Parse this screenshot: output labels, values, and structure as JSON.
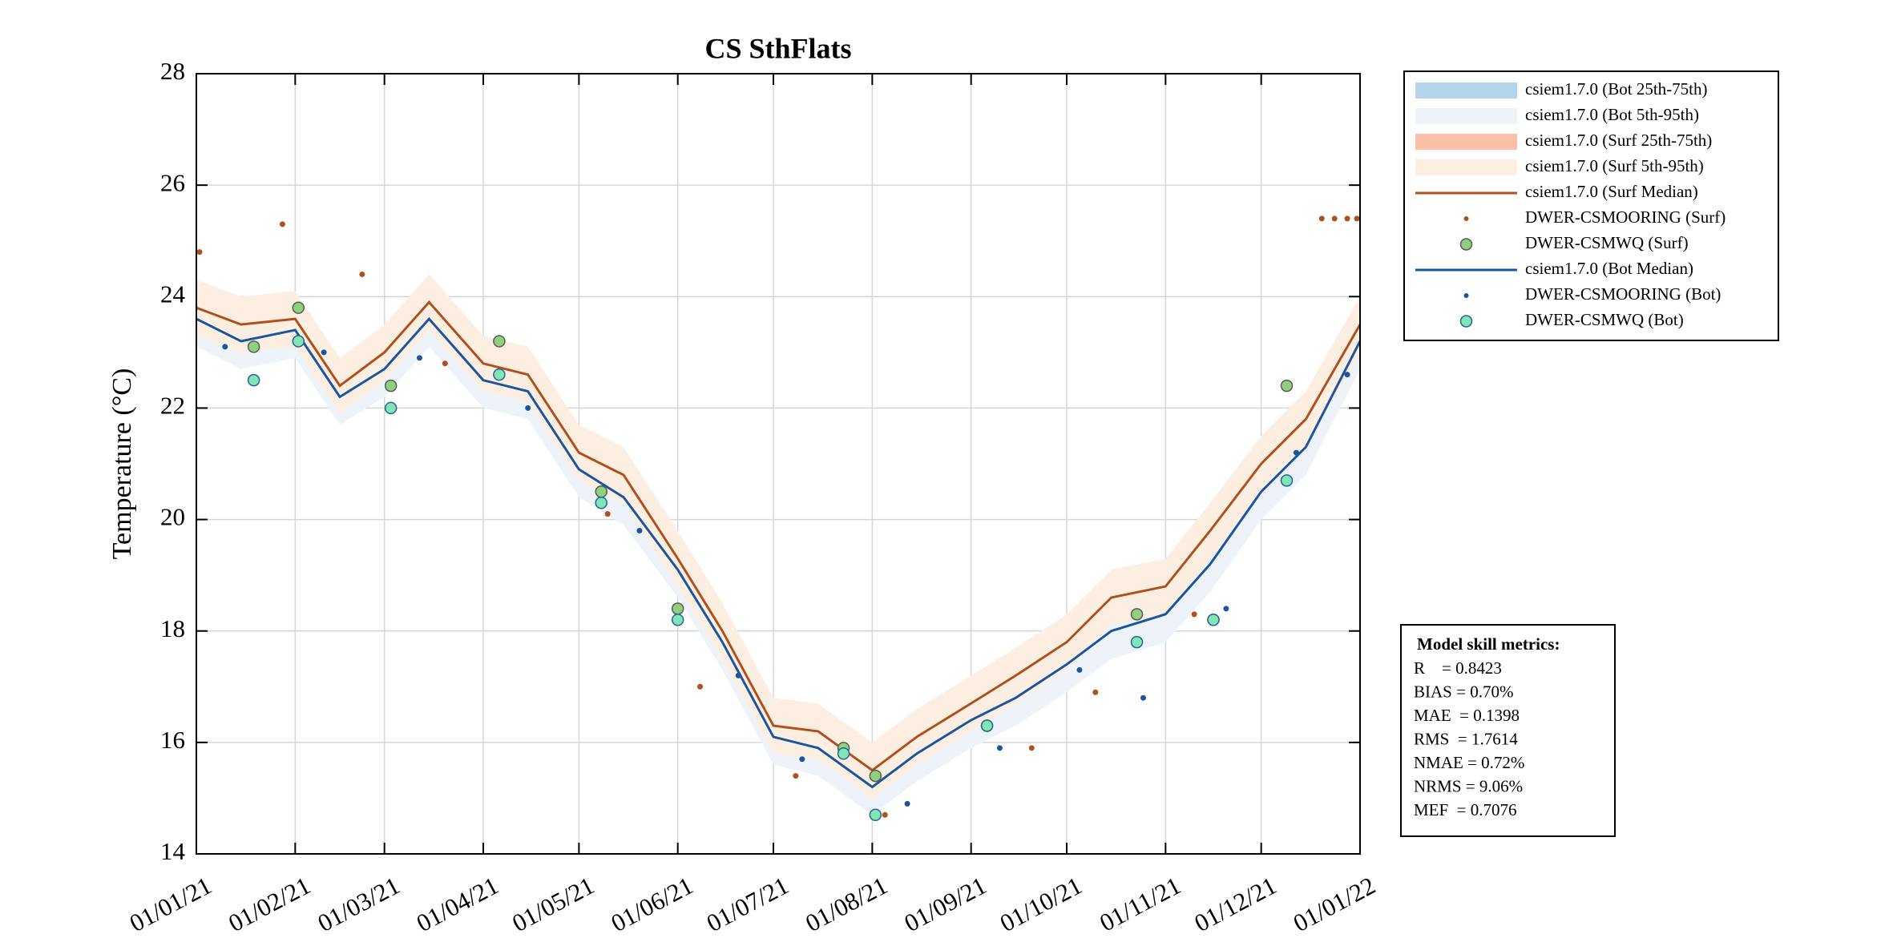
{
  "chart_data": {
    "type": "line",
    "title": "CS SthFlats",
    "y_label": "Temperature (°C)",
    "x": [
      "2021-01-01",
      "2021-01-15",
      "2021-02-01",
      "2021-02-15",
      "2021-03-01",
      "2021-03-15",
      "2021-04-01",
      "2021-04-15",
      "2021-05-01",
      "2021-05-15",
      "2021-06-01",
      "2021-06-15",
      "2021-07-01",
      "2021-07-15",
      "2021-08-01",
      "2021-08-15",
      "2021-09-01",
      "2021-09-15",
      "2021-10-01",
      "2021-10-15",
      "2021-11-01",
      "2021-11-15",
      "2021-12-01",
      "2021-12-15",
      "2022-01-01"
    ],
    "xlim": [
      "2021-01-01",
      "2022-01-01"
    ],
    "xticks": [
      {
        "value": "2021-01-01",
        "label": "01/01/21"
      },
      {
        "value": "2021-02-01",
        "label": "01/02/21"
      },
      {
        "value": "2021-03-01",
        "label": "01/03/21"
      },
      {
        "value": "2021-04-01",
        "label": "01/04/21"
      },
      {
        "value": "2021-05-01",
        "label": "01/05/21"
      },
      {
        "value": "2021-06-01",
        "label": "01/06/21"
      },
      {
        "value": "2021-07-01",
        "label": "01/07/21"
      },
      {
        "value": "2021-08-01",
        "label": "01/08/21"
      },
      {
        "value": "2021-09-01",
        "label": "01/09/21"
      },
      {
        "value": "2021-10-01",
        "label": "01/10/21"
      },
      {
        "value": "2021-11-01",
        "label": "01/11/21"
      },
      {
        "value": "2021-12-01",
        "label": "01/12/21"
      },
      {
        "value": "2022-01-01",
        "label": "01/01/22"
      }
    ],
    "ylim": [
      14,
      28
    ],
    "yticks": [
      14,
      16,
      18,
      20,
      22,
      24,
      26,
      28
    ],
    "grid": true,
    "series": [
      {
        "name": "csiem1.7.0 (Bot 25th-75th)",
        "kind": "band",
        "color": "#b4d4ea",
        "low": [
          23.4,
          23.0,
          23.2,
          22.0,
          22.5,
          23.4,
          22.3,
          22.1,
          20.7,
          20.2,
          18.9,
          17.6,
          15.9,
          15.7,
          15.0,
          15.6,
          16.2,
          16.6,
          17.2,
          17.8,
          18.1,
          19.0,
          20.3,
          21.1,
          23.0
        ],
        "high": [
          23.8,
          23.4,
          23.6,
          22.4,
          22.9,
          23.8,
          22.7,
          22.5,
          21.1,
          20.6,
          19.3,
          18.0,
          16.3,
          16.1,
          15.4,
          16.0,
          16.6,
          17.0,
          17.6,
          18.2,
          18.5,
          19.4,
          20.7,
          21.5,
          23.4
        ]
      },
      {
        "name": "csiem1.7.0 (Bot 5th-95th)",
        "kind": "band",
        "color": "#eef3fa",
        "low": [
          23.1,
          22.7,
          22.9,
          21.7,
          22.2,
          23.1,
          22.0,
          21.8,
          20.4,
          19.9,
          18.6,
          17.3,
          15.6,
          15.4,
          14.7,
          15.3,
          15.9,
          16.3,
          16.9,
          17.5,
          17.8,
          18.7,
          20.0,
          20.8,
          22.7
        ],
        "high": [
          24.1,
          23.7,
          23.9,
          22.7,
          23.2,
          24.1,
          23.0,
          22.8,
          21.4,
          20.9,
          19.6,
          18.3,
          16.6,
          16.4,
          15.7,
          16.3,
          16.9,
          17.3,
          17.9,
          18.5,
          18.8,
          19.7,
          21.0,
          21.8,
          23.7
        ]
      },
      {
        "name": "csiem1.7.0 (Surf 25th-75th)",
        "kind": "band",
        "color": "#fcbfa8",
        "low": [
          23.6,
          23.3,
          23.4,
          22.2,
          22.8,
          23.7,
          22.6,
          22.4,
          21.0,
          20.6,
          19.1,
          17.8,
          16.1,
          16.0,
          15.3,
          15.9,
          16.5,
          17.0,
          17.6,
          18.4,
          18.6,
          19.6,
          20.8,
          21.6,
          23.3
        ],
        "high": [
          24.0,
          23.7,
          23.8,
          22.6,
          23.2,
          24.1,
          23.0,
          22.8,
          21.4,
          21.0,
          19.5,
          18.2,
          16.5,
          16.4,
          15.7,
          16.3,
          16.9,
          17.4,
          18.0,
          18.8,
          19.0,
          20.0,
          21.2,
          22.0,
          23.7
        ]
      },
      {
        "name": "csiem1.7.0 (Surf 5th-95th)",
        "kind": "band",
        "color": "#fdeee2",
        "low": [
          23.3,
          23.0,
          23.1,
          21.9,
          22.5,
          23.4,
          22.3,
          22.1,
          20.7,
          20.3,
          18.8,
          17.5,
          15.8,
          15.7,
          15.0,
          15.6,
          16.2,
          16.7,
          17.3,
          18.1,
          18.3,
          19.3,
          20.5,
          21.3,
          23.0
        ],
        "high": [
          24.3,
          24.0,
          24.1,
          22.9,
          23.5,
          24.4,
          23.3,
          23.1,
          21.7,
          21.3,
          19.8,
          18.5,
          16.8,
          16.7,
          16.0,
          16.6,
          17.2,
          17.7,
          18.3,
          19.1,
          19.3,
          20.3,
          21.5,
          22.3,
          24.0
        ]
      },
      {
        "name": "csiem1.7.0 (Surf Median)",
        "kind": "line",
        "color": "#b0501c",
        "values": [
          23.8,
          23.5,
          23.6,
          22.4,
          23.0,
          23.9,
          22.8,
          22.6,
          21.2,
          20.8,
          19.3,
          18.0,
          16.3,
          16.2,
          15.5,
          16.1,
          16.7,
          17.2,
          17.8,
          18.6,
          18.8,
          19.8,
          21.0,
          21.8,
          23.5
        ]
      },
      {
        "name": "DWER-CSMOORING (Surf)",
        "kind": "points",
        "color": "#b0501c",
        "x": [
          "2021-01-02",
          "2021-01-28",
          "2021-02-22",
          "2021-03-20",
          "2021-05-10",
          "2021-06-08",
          "2021-07-08",
          "2021-08-05",
          "2021-09-20",
          "2021-10-10",
          "2021-11-10",
          "2021-12-20",
          "2021-12-24",
          "2021-12-28",
          "2021-12-31"
        ],
        "values": [
          24.8,
          25.3,
          24.4,
          22.8,
          20.1,
          17.0,
          15.4,
          14.7,
          15.9,
          16.9,
          18.3,
          25.4,
          25.4,
          25.4,
          25.4
        ]
      },
      {
        "name": "DWER-CSMWQ (Surf)",
        "kind": "circles",
        "color": "#8fd07e",
        "edge": "#5a5a5a",
        "x": [
          "2021-01-19",
          "2021-02-02",
          "2021-03-03",
          "2021-04-06",
          "2021-05-08",
          "2021-06-01",
          "2021-07-23",
          "2021-08-02",
          "2021-09-06",
          "2021-10-23",
          "2021-11-16",
          "2021-12-09"
        ],
        "values": [
          23.1,
          23.8,
          22.4,
          23.2,
          20.5,
          18.4,
          15.9,
          15.4,
          16.3,
          18.3,
          18.2,
          22.4
        ]
      },
      {
        "name": "csiem1.7.0 (Bot Median)",
        "kind": "line",
        "color": "#1a55a0",
        "values": [
          23.6,
          23.2,
          23.4,
          22.2,
          22.7,
          23.6,
          22.5,
          22.3,
          20.9,
          20.4,
          19.1,
          17.8,
          16.1,
          15.9,
          15.2,
          15.8,
          16.4,
          16.8,
          17.4,
          18.0,
          18.3,
          19.2,
          20.5,
          21.3,
          23.2
        ]
      },
      {
        "name": "DWER-CSMOORING (Bot)",
        "kind": "points",
        "color": "#1a55a0",
        "x": [
          "2021-01-10",
          "2021-02-10",
          "2021-03-12",
          "2021-04-15",
          "2021-05-20",
          "2021-06-20",
          "2021-07-10",
          "2021-08-12",
          "2021-09-10",
          "2021-10-05",
          "2021-10-25",
          "2021-11-20",
          "2021-12-12",
          "2021-12-28"
        ],
        "values": [
          23.1,
          23.0,
          22.9,
          22.0,
          19.8,
          17.2,
          15.7,
          14.9,
          15.9,
          17.3,
          16.8,
          18.4,
          21.2,
          22.6
        ]
      },
      {
        "name": "DWER-CSMWQ (Bot)",
        "kind": "circles",
        "color": "#7fe6b4",
        "edge": "#2a5fa0",
        "x": [
          "2021-01-19",
          "2021-02-02",
          "2021-03-03",
          "2021-04-06",
          "2021-05-08",
          "2021-06-01",
          "2021-07-23",
          "2021-08-02",
          "2021-09-06",
          "2021-10-23",
          "2021-11-16",
          "2021-12-09"
        ],
        "values": [
          22.5,
          23.2,
          22.0,
          22.6,
          20.3,
          18.2,
          15.8,
          14.7,
          16.3,
          17.8,
          18.2,
          20.7
        ]
      }
    ],
    "metrics": {
      "title": "Model skill metrics:",
      "lines": [
        "R    = 0.8423",
        "BIAS = 0.70%",
        "MAE  = 0.1398",
        "RMS  = 1.7614",
        "NMAE = 0.72%",
        "NRMS = 9.06%",
        "MEF  = 0.7076"
      ]
    }
  }
}
